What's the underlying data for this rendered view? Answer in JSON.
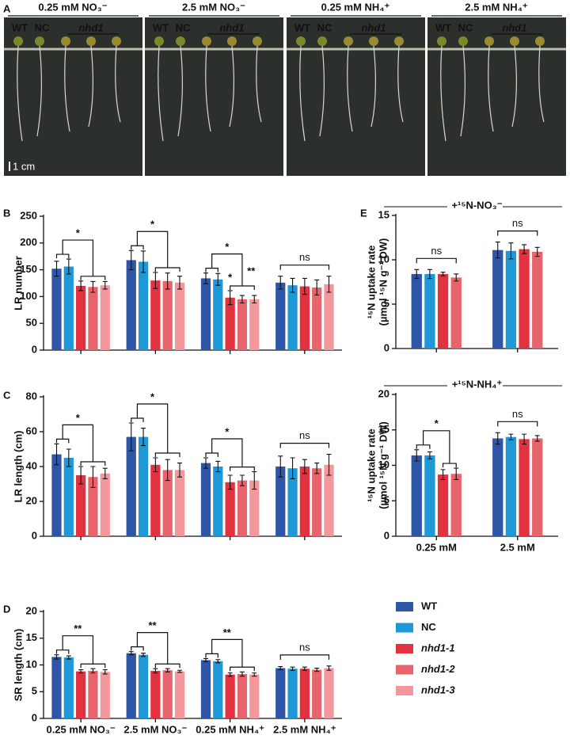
{
  "photo": {
    "panel": "A",
    "conditions": [
      "0.25 mM NO₃⁻",
      "2.5 mM NO₃⁻",
      "0.25 mM NH₄⁺",
      "2.5 mM NH₄⁺"
    ],
    "labels": [
      "WT",
      "NC",
      "nhd1"
    ],
    "scale": "1 cm"
  },
  "chart_data": [
    {
      "type": "bar",
      "panel": "B",
      "ylabel": "LR number",
      "categories": [
        null,
        null,
        null,
        null
      ],
      "series": [
        {
          "name": "WT",
          "color": "#2f56a6",
          "values": [
            152,
            168,
            134,
            126
          ],
          "errors": [
            14,
            18,
            10,
            12
          ]
        },
        {
          "name": "NC",
          "color": "#1f98d8",
          "values": [
            156,
            165,
            132,
            121
          ],
          "errors": [
            14,
            20,
            11,
            13
          ]
        },
        {
          "name": "nhd1-1",
          "color": "#e2313f",
          "values": [
            120,
            130,
            98,
            119
          ],
          "errors": [
            9,
            15,
            13,
            15
          ]
        },
        {
          "name": "nhd1-2",
          "color": "#e8646c",
          "values": [
            118,
            129,
            95,
            117
          ],
          "errors": [
            10,
            15,
            7,
            14
          ]
        },
        {
          "name": "nhd1-3",
          "color": "#f2979c",
          "values": [
            121,
            126,
            95,
            123
          ],
          "errors": [
            7,
            12,
            7,
            15
          ]
        }
      ],
      "ylim": [
        0,
        250
      ],
      "yticks": [
        0,
        50,
        100,
        150,
        200,
        250
      ],
      "significance": [
        [
          "*"
        ],
        [
          "*"
        ],
        [
          "*",
          "*",
          "**"
        ],
        [
          "ns"
        ]
      ]
    },
    {
      "type": "bar",
      "panel": "C",
      "ylabel": "LR length (cm)",
      "categories": [
        null,
        null,
        null,
        null
      ],
      "series": [
        {
          "name": "WT",
          "color": "#2f56a6",
          "values": [
            47,
            57,
            42,
            40
          ],
          "errors": [
            6,
            8,
            3,
            6
          ]
        },
        {
          "name": "NC",
          "color": "#1f98d8",
          "values": [
            45,
            57,
            40,
            39
          ],
          "errors": [
            5,
            5,
            3,
            6
          ]
        },
        {
          "name": "nhd1-1",
          "color": "#e2313f",
          "values": [
            35,
            41,
            31,
            40
          ],
          "errors": [
            5,
            4,
            4,
            4
          ]
        },
        {
          "name": "nhd1-2",
          "color": "#e8646c",
          "values": [
            34,
            38,
            32,
            39
          ],
          "errors": [
            6,
            6,
            3,
            3
          ]
        },
        {
          "name": "nhd1-3",
          "color": "#f2979c",
          "values": [
            36,
            38,
            32,
            41
          ],
          "errors": [
            3,
            4,
            5,
            6
          ]
        }
      ],
      "ylim": [
        0,
        80
      ],
      "yticks": [
        0,
        20,
        40,
        60,
        80
      ],
      "significance": [
        [
          "*"
        ],
        [
          "*"
        ],
        [
          "*"
        ],
        [
          "ns"
        ]
      ]
    },
    {
      "type": "bar",
      "panel": "D",
      "ylabel": "SR length (cm)",
      "categories": [
        "0.25 mM NO₃⁻",
        "2.5 mM NO₃⁻",
        "0.25 mM NH₄⁺",
        "2.5 mM NH₄⁺"
      ],
      "series": [
        {
          "name": "WT",
          "color": "#2f56a6",
          "values": [
            11.5,
            12.2,
            10.9,
            9.4
          ],
          "errors": [
            0.4,
            0.3,
            0.3,
            0.3
          ]
        },
        {
          "name": "NC",
          "color": "#1f98d8",
          "values": [
            11.4,
            11.9,
            10.7,
            9.3
          ],
          "errors": [
            0.3,
            0.3,
            0.3,
            0.3
          ]
        },
        {
          "name": "nhd1-1",
          "color": "#e2313f",
          "values": [
            8.8,
            8.9,
            8.2,
            9.3
          ],
          "errors": [
            0.3,
            0.4,
            0.3,
            0.3
          ]
        },
        {
          "name": "nhd1-2",
          "color": "#e8646c",
          "values": [
            8.9,
            9.0,
            8.3,
            9.1
          ],
          "errors": [
            0.4,
            0.3,
            0.4,
            0.3
          ]
        },
        {
          "name": "nhd1-3",
          "color": "#f2979c",
          "values": [
            8.7,
            8.8,
            8.2,
            9.4
          ],
          "errors": [
            0.4,
            0.2,
            0.3,
            0.4
          ]
        }
      ],
      "ylim": [
        0,
        20
      ],
      "yticks": [
        0,
        5,
        10,
        15,
        20
      ],
      "significance": [
        [
          "**"
        ],
        [
          "**"
        ],
        [
          "**"
        ],
        [
          "ns"
        ]
      ]
    },
    {
      "type": "bar",
      "panel": "E",
      "header": "+¹⁵N-NO₃⁻",
      "ylabel": [
        "¹⁵N uptake rate",
        "(µmol ¹⁵N g⁻¹ DW)"
      ],
      "categories": [
        null,
        null
      ],
      "series": [
        {
          "color": "#2f56a6",
          "values": [
            8.4,
            11.1
          ],
          "errors": [
            0.5,
            0.9
          ]
        },
        {
          "color": "#1f98d8",
          "values": [
            8.4,
            11.0
          ],
          "errors": [
            0.5,
            0.9
          ]
        },
        {
          "color": "#e2313f",
          "values": [
            8.4,
            11.2
          ],
          "errors": [
            0.2,
            0.5
          ]
        },
        {
          "color": "#e8646c",
          "values": [
            8.0,
            10.9
          ],
          "errors": [
            0.4,
            0.5
          ]
        }
      ],
      "ylim": [
        0,
        15
      ],
      "yticks": [
        0,
        5,
        10,
        15
      ],
      "significance": [
        [
          "ns"
        ],
        [
          "ns"
        ]
      ]
    },
    {
      "type": "bar",
      "header": "+¹⁵N-NH₄⁺",
      "ylabel": [
        "¹⁵N uptake rate",
        "(µmol ¹⁵N g⁻¹ DW)"
      ],
      "categories": [
        "0.25 mM",
        "2.5 mM"
      ],
      "series": [
        {
          "color": "#2f56a6",
          "values": [
            11.4,
            13.8
          ],
          "errors": [
            0.8,
            0.8
          ]
        },
        {
          "color": "#1f98d8",
          "values": [
            11.4,
            14.0
          ],
          "errors": [
            0.5,
            0.4
          ]
        },
        {
          "color": "#e2313f",
          "values": [
            8.7,
            13.7
          ],
          "errors": [
            0.7,
            0.7
          ]
        },
        {
          "color": "#e8646c",
          "values": [
            8.8,
            13.8
          ],
          "errors": [
            0.8,
            0.4
          ]
        }
      ],
      "ylim": [
        0,
        20
      ],
      "yticks": [
        0,
        5,
        10,
        15,
        20
      ],
      "significance": [
        [
          "*"
        ],
        [
          "ns"
        ]
      ]
    }
  ]
}
